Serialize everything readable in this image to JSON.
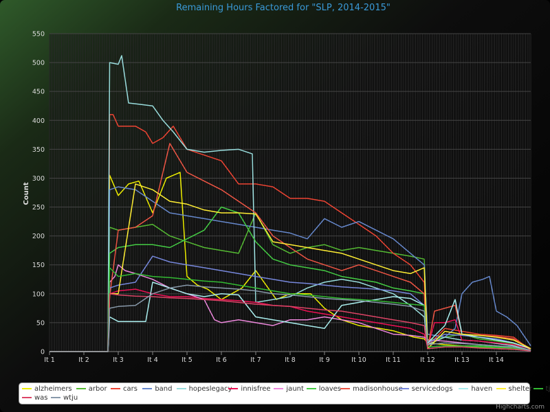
{
  "chart_data": {
    "type": "line",
    "title": "Remaining Hours Factored for \"SLP, 2014-2015\"",
    "xlabel": "",
    "ylabel": "Count",
    "ylim": [
      0,
      550
    ],
    "yticks": [
      0,
      50,
      100,
      150,
      200,
      250,
      300,
      350,
      400,
      450,
      500,
      550
    ],
    "categories": [
      "It 1",
      "It 2",
      "It 3",
      "It 4",
      "It 5",
      "It 6",
      "It 7",
      "It 8",
      "It 9",
      "It 10",
      "It 11",
      "It 12",
      "It 13",
      "It 14"
    ],
    "x_range": [
      0,
      14
    ],
    "grid": true,
    "legend": "bottom",
    "series": [
      {
        "name": "alzheimers",
        "color": "#eeee00",
        "x": [
          0,
          1.7,
          1.75,
          2.0,
          2.3,
          2.6,
          3.0,
          3.4,
          3.8,
          4.0,
          4.3,
          4.6,
          5.0,
          5.6,
          6.0,
          6.6,
          7.0,
          7.6,
          8.0,
          8.5,
          9.0,
          9.6,
          10.0,
          10.6,
          10.9,
          11.0,
          11.5,
          12.0,
          12.6,
          13.0,
          13.5,
          14.0
        ],
        "values": [
          0,
          0,
          305,
          270,
          290,
          295,
          240,
          300,
          310,
          130,
          115,
          108,
          90,
          110,
          140,
          90,
          100,
          100,
          75,
          55,
          45,
          40,
          36,
          25,
          22,
          15,
          12,
          10,
          7,
          5,
          4,
          2
        ]
      },
      {
        "name": "arbor",
        "color": "#55bb33",
        "x": [
          0,
          1.7,
          1.75,
          2.0,
          2.5,
          3.0,
          3.5,
          4.0,
          4.5,
          5.0,
          5.5,
          6.0,
          6.5,
          7.0,
          7.5,
          8.0,
          8.5,
          9.0,
          9.5,
          10.0,
          10.5,
          10.9,
          11.0,
          11.5,
          12.0,
          12.5,
          13.0,
          13.5,
          14.0
        ],
        "values": [
          0,
          0,
          215,
          210,
          215,
          220,
          200,
          190,
          180,
          175,
          170,
          240,
          185,
          170,
          180,
          185,
          175,
          180,
          175,
          170,
          165,
          160,
          20,
          25,
          30,
          22,
          18,
          14,
          5
        ]
      },
      {
        "name": "cars",
        "color": "#ee4433",
        "x": [
          0,
          1.7,
          1.75,
          1.85,
          2.0,
          2.5,
          2.8,
          3.0,
          3.3,
          3.6,
          4.0,
          4.5,
          5.0,
          5.5,
          6.0,
          6.5,
          7.0,
          7.5,
          8.0,
          8.5,
          9.0,
          9.5,
          10.0,
          10.5,
          10.9,
          11.0,
          11.5,
          12.0,
          12.5,
          13.0,
          13.5,
          14.0
        ],
        "values": [
          0,
          0,
          410,
          410,
          390,
          390,
          380,
          360,
          370,
          390,
          350,
          340,
          330,
          290,
          290,
          285,
          265,
          265,
          260,
          240,
          220,
          200,
          170,
          150,
          120,
          10,
          40,
          35,
          30,
          28,
          25,
          2
        ]
      },
      {
        "name": "band",
        "color": "#6688cc",
        "x": [
          0,
          1.7,
          1.75,
          2.0,
          2.5,
          3.0,
          3.5,
          4.0,
          4.5,
          5.0,
          5.5,
          6.0,
          6.5,
          7.0,
          7.5,
          8.0,
          8.5,
          9.0,
          9.5,
          10.0,
          10.5,
          10.9,
          11.0,
          11.5,
          11.8,
          12.0,
          12.3,
          12.6,
          12.8,
          13.0,
          13.3,
          13.6,
          14.0
        ],
        "values": [
          0,
          0,
          280,
          285,
          280,
          260,
          240,
          235,
          230,
          225,
          220,
          215,
          210,
          205,
          195,
          230,
          215,
          225,
          210,
          195,
          170,
          150,
          30,
          25,
          40,
          100,
          120,
          125,
          130,
          70,
          60,
          45,
          10
        ]
      },
      {
        "name": "hopeslegacy",
        "color": "#99dddd",
        "x": [
          0,
          1.7,
          1.75,
          2.0,
          2.1,
          2.3,
          2.6,
          3.0,
          3.3,
          3.6,
          4.0,
          4.5,
          5.0,
          5.5,
          5.9,
          6.0,
          6.5,
          7.0,
          7.5,
          8.0,
          8.5,
          9.0,
          9.5,
          10.0,
          10.5,
          10.9,
          11.0,
          11.5,
          12.0,
          12.5,
          13.0,
          13.5,
          14.0
        ],
        "values": [
          0,
          0,
          500,
          497,
          512,
          430,
          428,
          425,
          400,
          380,
          350,
          345,
          348,
          350,
          342,
          85,
          90,
          95,
          110,
          120,
          125,
          120,
          110,
          100,
          80,
          60,
          12,
          25,
          20,
          18,
          14,
          10,
          2
        ]
      },
      {
        "name": "innisfree",
        "color": "#ee1155",
        "x": [
          0,
          1.7,
          1.75,
          2.0,
          2.5,
          3.0,
          3.5,
          4.0,
          4.5,
          5.0,
          5.5,
          6.0,
          6.5,
          7.0,
          7.5,
          8.0,
          8.5,
          9.0,
          9.5,
          10.0,
          10.5,
          10.9,
          11.0,
          11.2,
          11.5,
          11.8,
          12.0,
          12.5,
          13.0,
          13.5,
          14.0
        ],
        "values": [
          0,
          0,
          100,
          105,
          108,
          100,
          95,
          95,
          92,
          90,
          88,
          85,
          80,
          78,
          70,
          65,
          60,
          55,
          50,
          45,
          40,
          30,
          8,
          50,
          50,
          55,
          20,
          18,
          15,
          12,
          5
        ]
      },
      {
        "name": "jaunt",
        "color": "#ee88dd",
        "x": [
          0,
          1.7,
          1.75,
          1.9,
          2.0,
          2.2,
          2.5,
          3.0,
          3.5,
          4.0,
          4.5,
          4.8,
          5.0,
          5.5,
          6.0,
          6.5,
          7.0,
          7.5,
          8.0,
          8.5,
          9.0,
          9.5,
          10.0,
          10.5,
          10.9,
          11.0,
          11.5,
          12.0,
          12.5,
          13.0,
          13.5,
          14.0
        ],
        "values": [
          0,
          0,
          120,
          130,
          150,
          140,
          135,
          125,
          110,
          100,
          90,
          55,
          50,
          55,
          50,
          45,
          55,
          55,
          60,
          55,
          50,
          40,
          30,
          28,
          25,
          20,
          18,
          15,
          12,
          10,
          6,
          2
        ]
      },
      {
        "name": "loaves",
        "color": "#44cc44",
        "x": [
          0,
          1.7,
          1.75,
          2.0,
          2.5,
          3.0,
          3.5,
          4.0,
          4.5,
          5.0,
          5.5,
          6.0,
          6.5,
          7.0,
          7.5,
          8.0,
          8.5,
          9.0,
          9.5,
          10.0,
          10.5,
          10.9,
          11.0,
          11.5,
          12.0,
          12.5,
          13.0,
          13.5,
          14.0
        ],
        "values": [
          0,
          0,
          170,
          180,
          185,
          185,
          180,
          195,
          210,
          250,
          240,
          190,
          160,
          150,
          145,
          140,
          130,
          125,
          120,
          110,
          105,
          100,
          5,
          8,
          10,
          10,
          8,
          6,
          2
        ]
      },
      {
        "name": "madisonhouse",
        "color": "#ee5544",
        "x": [
          0,
          1.7,
          1.75,
          2.0,
          2.5,
          3.0,
          3.5,
          4.0,
          4.5,
          5.0,
          5.5,
          6.0,
          6.5,
          7.0,
          7.5,
          8.0,
          8.5,
          9.0,
          9.5,
          10.0,
          10.5,
          10.9,
          11.0,
          11.2,
          11.5,
          11.8,
          12.0,
          12.5,
          13.0,
          13.5,
          14.0
        ],
        "values": [
          0,
          0,
          95,
          210,
          215,
          235,
          360,
          310,
          295,
          280,
          260,
          240,
          200,
          180,
          160,
          150,
          140,
          150,
          140,
          130,
          120,
          100,
          5,
          70,
          75,
          80,
          30,
          28,
          26,
          22,
          5
        ]
      },
      {
        "name": "servicedogs",
        "color": "#7788dd",
        "x": [
          0,
          1.7,
          1.75,
          2.0,
          2.5,
          3.0,
          3.5,
          4.0,
          4.5,
          5.0,
          5.5,
          6.0,
          6.5,
          7.0,
          7.5,
          8.0,
          8.5,
          9.0,
          9.5,
          10.0,
          10.5,
          10.9,
          11.0,
          11.5,
          12.0,
          12.5,
          13.0,
          13.5,
          14.0
        ],
        "values": [
          0,
          0,
          110,
          115,
          120,
          165,
          155,
          150,
          145,
          140,
          135,
          130,
          125,
          120,
          118,
          115,
          112,
          110,
          108,
          105,
          100,
          80,
          15,
          30,
          28,
          25,
          22,
          15,
          5
        ]
      },
      {
        "name": "haven",
        "color": "#aaeeee",
        "x": [
          0,
          1.7,
          1.75,
          2.0,
          2.5,
          2.8,
          3.0,
          3.5,
          4.0,
          4.5,
          5.0,
          5.5,
          6.0,
          6.5,
          7.0,
          7.5,
          8.0,
          8.5,
          9.0,
          9.5,
          10.0,
          10.5,
          10.9,
          11.0,
          11.5,
          11.8,
          12.0,
          12.5,
          13.0,
          13.5,
          14.0
        ],
        "values": [
          0,
          0,
          60,
          52,
          52,
          52,
          120,
          110,
          100,
          95,
          100,
          98,
          60,
          55,
          50,
          45,
          40,
          80,
          85,
          90,
          95,
          92,
          80,
          15,
          45,
          90,
          30,
          25,
          20,
          15,
          5
        ]
      },
      {
        "name": "shelter",
        "color": "#ffee33",
        "x": [
          0,
          1.7,
          1.75,
          2.0,
          2.5,
          3.0,
          3.5,
          4.0,
          4.5,
          5.0,
          5.5,
          6.0,
          6.5,
          7.0,
          7.5,
          8.0,
          8.5,
          9.0,
          9.5,
          10.0,
          10.5,
          10.9,
          11.0,
          11.5,
          12.0,
          12.5,
          13.0,
          13.5,
          14.0
        ],
        "values": [
          0,
          0,
          100,
          100,
          290,
          280,
          260,
          255,
          245,
          240,
          240,
          238,
          190,
          185,
          180,
          175,
          170,
          160,
          150,
          140,
          135,
          145,
          5,
          35,
          30,
          28,
          25,
          20,
          5
        ]
      },
      {
        "name": "tjace",
        "color": "#33bb33",
        "x": [
          0,
          1.7,
          1.75,
          2.0,
          2.5,
          3.0,
          3.5,
          4.0,
          4.5,
          5.0,
          5.5,
          6.0,
          6.5,
          7.0,
          7.5,
          8.0,
          8.5,
          9.0,
          9.5,
          10.0,
          10.5,
          10.9,
          11.0,
          11.5,
          12.0,
          12.5,
          13.0,
          13.5,
          14.0
        ],
        "values": [
          0,
          0,
          145,
          130,
          135,
          130,
          128,
          125,
          122,
          120,
          115,
          110,
          105,
          100,
          98,
          95,
          92,
          90,
          88,
          85,
          82,
          80,
          8,
          10,
          10,
          8,
          7,
          6,
          2
        ]
      },
      {
        "name": "was",
        "color": "#dd4466",
        "x": [
          0,
          1.7,
          1.75,
          2.0,
          2.5,
          3.0,
          3.5,
          4.0,
          4.5,
          5.0,
          5.5,
          6.0,
          6.5,
          7.0,
          7.5,
          8.0,
          8.5,
          9.0,
          9.5,
          10.0,
          10.5,
          10.9,
          11.0,
          11.5,
          12.0,
          12.5,
          13.0,
          13.5,
          14.0
        ],
        "values": [
          0,
          0,
          100,
          98,
          96,
          95,
          93,
          92,
          90,
          88,
          85,
          82,
          80,
          78,
          75,
          72,
          70,
          65,
          60,
          55,
          50,
          45,
          5,
          8,
          8,
          6,
          5,
          4,
          1
        ]
      },
      {
        "name": "wtju",
        "color": "#8899aa",
        "x": [
          0,
          1.7,
          1.75,
          2.0,
          2.5,
          3.0,
          3.5,
          4.0,
          4.5,
          5.0,
          5.5,
          6.0,
          6.5,
          7.0,
          7.5,
          8.0,
          8.5,
          9.0,
          9.5,
          10.0,
          10.5,
          10.9,
          11.0,
          11.5,
          12.0,
          12.5,
          13.0,
          13.5,
          14.0
        ],
        "values": [
          0,
          0,
          75,
          78,
          80,
          100,
          110,
          115,
          112,
          110,
          108,
          105,
          100,
          98,
          95,
          92,
          90,
          88,
          85,
          82,
          78,
          70,
          12,
          15,
          14,
          12,
          10,
          8,
          2
        ]
      }
    ]
  },
  "credit": "Highcharts.com"
}
